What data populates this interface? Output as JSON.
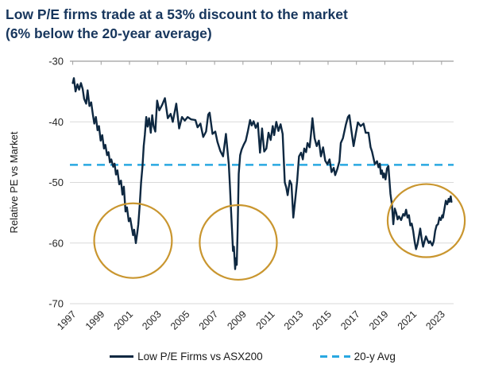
{
  "title": {
    "line1": "Low P/E firms trade at a 53% discount to the market",
    "line2": "(6% below the 20-year average)"
  },
  "legend": {
    "series_label": "Low P/E Firms vs ASX200",
    "avg_label": "20-y Avg"
  },
  "colors": {
    "title": "#17365D",
    "line": "#0E2841",
    "avg_line": "#29A8E1",
    "circle": "#C9962F",
    "grid": "#D9D9D9",
    "spine": "#9E9E9E",
    "tick_text": "#262626"
  },
  "chart_data": {
    "type": "line",
    "ylabel": "Relative PE vs Market",
    "ylim": [
      -70,
      -30
    ],
    "yticks": [
      -30,
      -40,
      -50,
      -60,
      -70
    ],
    "xticks": [
      1997,
      1999,
      2001,
      2003,
      2005,
      2007,
      2009,
      2011,
      2013,
      2015,
      2017,
      2019,
      2021,
      2023
    ],
    "xlim": [
      1996.8,
      2023.85
    ],
    "grid": true,
    "legend_position": "bottom",
    "average_line": {
      "label": "20-y Avg",
      "value": -47.1,
      "color": "#29A8E1",
      "style": "dashed"
    },
    "annotations": [
      {
        "type": "ellipse",
        "center_year": 2001.25,
        "center_value": -59.6,
        "rx_years": 2.74,
        "ry_units": 6.16,
        "color": "#C9962F"
      },
      {
        "type": "ellipse",
        "center_year": 2008.67,
        "center_value": -59.9,
        "rx_years": 2.72,
        "ry_units": 6.16,
        "color": "#C9962F"
      },
      {
        "type": "ellipse",
        "center_year": 2021.92,
        "center_value": -56.3,
        "rx_years": 2.72,
        "ry_units": 6.03,
        "color": "#C9962F"
      }
    ],
    "series": [
      {
        "name": "Low P/E Firms vs ASX200",
        "color": "#0E2841",
        "points": [
          [
            1997.0,
            -33.6
          ],
          [
            1997.08,
            -32.8
          ],
          [
            1997.2,
            -35.0
          ],
          [
            1997.33,
            -33.8
          ],
          [
            1997.45,
            -34.7
          ],
          [
            1997.58,
            -33.6
          ],
          [
            1997.7,
            -34.6
          ],
          [
            1997.8,
            -36.2
          ],
          [
            1997.95,
            -37.0
          ],
          [
            1998.05,
            -34.8
          ],
          [
            1998.18,
            -37.4
          ],
          [
            1998.3,
            -36.8
          ],
          [
            1998.42,
            -38.8
          ],
          [
            1998.52,
            -40.3
          ],
          [
            1998.63,
            -39.2
          ],
          [
            1998.75,
            -41.4
          ],
          [
            1998.85,
            -40.7
          ],
          [
            1998.97,
            -43.1
          ],
          [
            1999.08,
            -42.2
          ],
          [
            1999.2,
            -44.4
          ],
          [
            1999.3,
            -43.8
          ],
          [
            1999.42,
            -45.5
          ],
          [
            1999.52,
            -45.0
          ],
          [
            1999.62,
            -46.7
          ],
          [
            1999.72,
            -46.2
          ],
          [
            1999.85,
            -47.4
          ],
          [
            1999.95,
            -46.9
          ],
          [
            2000.05,
            -48.7
          ],
          [
            2000.15,
            -48.0
          ],
          [
            2000.28,
            -50.3
          ],
          [
            2000.4,
            -49.7
          ],
          [
            2000.5,
            -52.0
          ],
          [
            2000.6,
            -50.7
          ],
          [
            2000.72,
            -54.8
          ],
          [
            2000.82,
            -54.1
          ],
          [
            2000.95,
            -56.4
          ],
          [
            2001.05,
            -55.9
          ],
          [
            2001.15,
            -57.3
          ],
          [
            2001.25,
            -58.7
          ],
          [
            2001.33,
            -57.8
          ],
          [
            2001.45,
            -60.0
          ],
          [
            2001.55,
            -58.3
          ],
          [
            2001.62,
            -56.9
          ],
          [
            2001.72,
            -53.7
          ],
          [
            2001.82,
            -50.0
          ],
          [
            2001.92,
            -47.3
          ],
          [
            2002.0,
            -44.0
          ],
          [
            2002.08,
            -42.2
          ],
          [
            2002.18,
            -39.2
          ],
          [
            2002.28,
            -40.8
          ],
          [
            2002.38,
            -39.4
          ],
          [
            2002.5,
            -41.8
          ],
          [
            2002.6,
            -38.9
          ],
          [
            2002.7,
            -40.7
          ],
          [
            2002.82,
            -41.6
          ],
          [
            2002.95,
            -36.5
          ],
          [
            2003.1,
            -38.1
          ],
          [
            2003.3,
            -37.2
          ],
          [
            2003.5,
            -36.1
          ],
          [
            2003.7,
            -39.4
          ],
          [
            2003.9,
            -38.7
          ],
          [
            2004.05,
            -40.0
          ],
          [
            2004.3,
            -37.0
          ],
          [
            2004.5,
            -41.1
          ],
          [
            2004.7,
            -39.2
          ],
          [
            2004.9,
            -39.8
          ],
          [
            2005.1,
            -39.2
          ],
          [
            2005.35,
            -39.6
          ],
          [
            2005.65,
            -39.7
          ],
          [
            2005.8,
            -40.9
          ],
          [
            2006.0,
            -40.3
          ],
          [
            2006.2,
            -42.5
          ],
          [
            2006.4,
            -41.6
          ],
          [
            2006.55,
            -38.8
          ],
          [
            2006.65,
            -38.5
          ],
          [
            2006.85,
            -42.0
          ],
          [
            2007.05,
            -41.6
          ],
          [
            2007.2,
            -43.3
          ],
          [
            2007.4,
            -44.8
          ],
          [
            2007.6,
            -45.7
          ],
          [
            2007.8,
            -42.0
          ],
          [
            2007.9,
            -44.5
          ],
          [
            2008.0,
            -47.0
          ],
          [
            2008.08,
            -50.5
          ],
          [
            2008.16,
            -54.5
          ],
          [
            2008.24,
            -58.5
          ],
          [
            2008.3,
            -61.3
          ],
          [
            2008.36,
            -60.6
          ],
          [
            2008.45,
            -64.3
          ],
          [
            2008.5,
            -62.5
          ],
          [
            2008.56,
            -63.6
          ],
          [
            2008.62,
            -58.0
          ],
          [
            2008.7,
            -48.6
          ],
          [
            2008.8,
            -45.5
          ],
          [
            2008.9,
            -44.6
          ],
          [
            2009.05,
            -43.8
          ],
          [
            2009.2,
            -43.1
          ],
          [
            2009.35,
            -41.5
          ],
          [
            2009.5,
            -39.7
          ],
          [
            2009.62,
            -40.6
          ],
          [
            2009.75,
            -39.9
          ],
          [
            2009.9,
            -41.0
          ],
          [
            2010.05,
            -40.2
          ],
          [
            2010.2,
            -45.1
          ],
          [
            2010.35,
            -41.1
          ],
          [
            2010.5,
            -44.9
          ],
          [
            2010.65,
            -44.4
          ],
          [
            2010.8,
            -41.8
          ],
          [
            2010.95,
            -43.0
          ],
          [
            2011.1,
            -40.7
          ],
          [
            2011.2,
            -42.2
          ],
          [
            2011.35,
            -40.0
          ],
          [
            2011.5,
            -41.5
          ],
          [
            2011.65,
            -40.4
          ],
          [
            2011.8,
            -42.0
          ],
          [
            2011.95,
            -50.0
          ],
          [
            2012.05,
            -50.8
          ],
          [
            2012.15,
            -52.1
          ],
          [
            2012.3,
            -49.7
          ],
          [
            2012.42,
            -50.3
          ],
          [
            2012.55,
            -55.8
          ],
          [
            2012.7,
            -52.5
          ],
          [
            2012.82,
            -49.7
          ],
          [
            2012.95,
            -45.7
          ],
          [
            2013.1,
            -45.1
          ],
          [
            2013.22,
            -46.2
          ],
          [
            2013.32,
            -44.4
          ],
          [
            2013.45,
            -45.0
          ],
          [
            2013.55,
            -43.5
          ],
          [
            2013.7,
            -44.2
          ],
          [
            2013.8,
            -42.0
          ],
          [
            2013.9,
            -39.4
          ],
          [
            2014.05,
            -42.7
          ],
          [
            2014.2,
            -44.0
          ],
          [
            2014.35,
            -43.1
          ],
          [
            2014.5,
            -45.7
          ],
          [
            2014.65,
            -44.2
          ],
          [
            2014.8,
            -46.4
          ],
          [
            2014.95,
            -47.0
          ],
          [
            2015.1,
            -46.2
          ],
          [
            2015.25,
            -48.3
          ],
          [
            2015.4,
            -47.6
          ],
          [
            2015.5,
            -48.8
          ],
          [
            2015.65,
            -47.8
          ],
          [
            2015.8,
            -46.5
          ],
          [
            2015.9,
            -43.5
          ],
          [
            2016.05,
            -42.7
          ],
          [
            2016.25,
            -40.5
          ],
          [
            2016.4,
            -39.2
          ],
          [
            2016.5,
            -38.9
          ],
          [
            2016.65,
            -41.5
          ],
          [
            2016.8,
            -44.0
          ],
          [
            2016.95,
            -42.0
          ],
          [
            2017.1,
            -40.1
          ],
          [
            2017.3,
            -40.7
          ],
          [
            2017.5,
            -40.3
          ],
          [
            2017.65,
            -41.8
          ],
          [
            2017.85,
            -41.8
          ],
          [
            2018.0,
            -44.2
          ],
          [
            2018.1,
            -44.9
          ],
          [
            2018.3,
            -47.0
          ],
          [
            2018.45,
            -46.5
          ],
          [
            2018.55,
            -47.5
          ],
          [
            2018.65,
            -46.9
          ],
          [
            2018.72,
            -48.6
          ],
          [
            2018.8,
            -48.0
          ],
          [
            2018.88,
            -49.2
          ],
          [
            2018.95,
            -48.5
          ],
          [
            2019.05,
            -49.5
          ],
          [
            2019.15,
            -47.7
          ],
          [
            2019.25,
            -47.3
          ],
          [
            2019.4,
            -51.9
          ],
          [
            2019.5,
            -53.6
          ],
          [
            2019.6,
            -56.9
          ],
          [
            2019.7,
            -54.3
          ],
          [
            2019.8,
            -55.0
          ],
          [
            2019.9,
            -56.1
          ],
          [
            2020.0,
            -55.6
          ],
          [
            2020.15,
            -56.2
          ],
          [
            2020.3,
            -55.2
          ],
          [
            2020.4,
            -55.5
          ],
          [
            2020.5,
            -54.5
          ],
          [
            2020.6,
            -55.8
          ],
          [
            2020.7,
            -55.4
          ],
          [
            2020.8,
            -57.1
          ],
          [
            2020.9,
            -56.8
          ],
          [
            2021.0,
            -58.0
          ],
          [
            2021.1,
            -59.7
          ],
          [
            2021.2,
            -61.0
          ],
          [
            2021.3,
            -60.2
          ],
          [
            2021.4,
            -58.9
          ],
          [
            2021.5,
            -57.6
          ],
          [
            2021.6,
            -59.3
          ],
          [
            2021.7,
            -60.6
          ],
          [
            2021.8,
            -59.7
          ],
          [
            2021.9,
            -58.9
          ],
          [
            2022.0,
            -59.5
          ],
          [
            2022.1,
            -60.0
          ],
          [
            2022.2,
            -59.7
          ],
          [
            2022.35,
            -60.4
          ],
          [
            2022.45,
            -59.7
          ],
          [
            2022.55,
            -58.0
          ],
          [
            2022.65,
            -57.1
          ],
          [
            2022.75,
            -56.9
          ],
          [
            2022.85,
            -55.8
          ],
          [
            2022.95,
            -56.2
          ],
          [
            2023.05,
            -55.4
          ],
          [
            2023.1,
            -55.8
          ],
          [
            2023.3,
            -53.0
          ],
          [
            2023.4,
            -53.6
          ],
          [
            2023.5,
            -52.7
          ],
          [
            2023.55,
            -53.2
          ],
          [
            2023.65,
            -52.3
          ],
          [
            2023.7,
            -53.2
          ]
        ]
      }
    ]
  }
}
